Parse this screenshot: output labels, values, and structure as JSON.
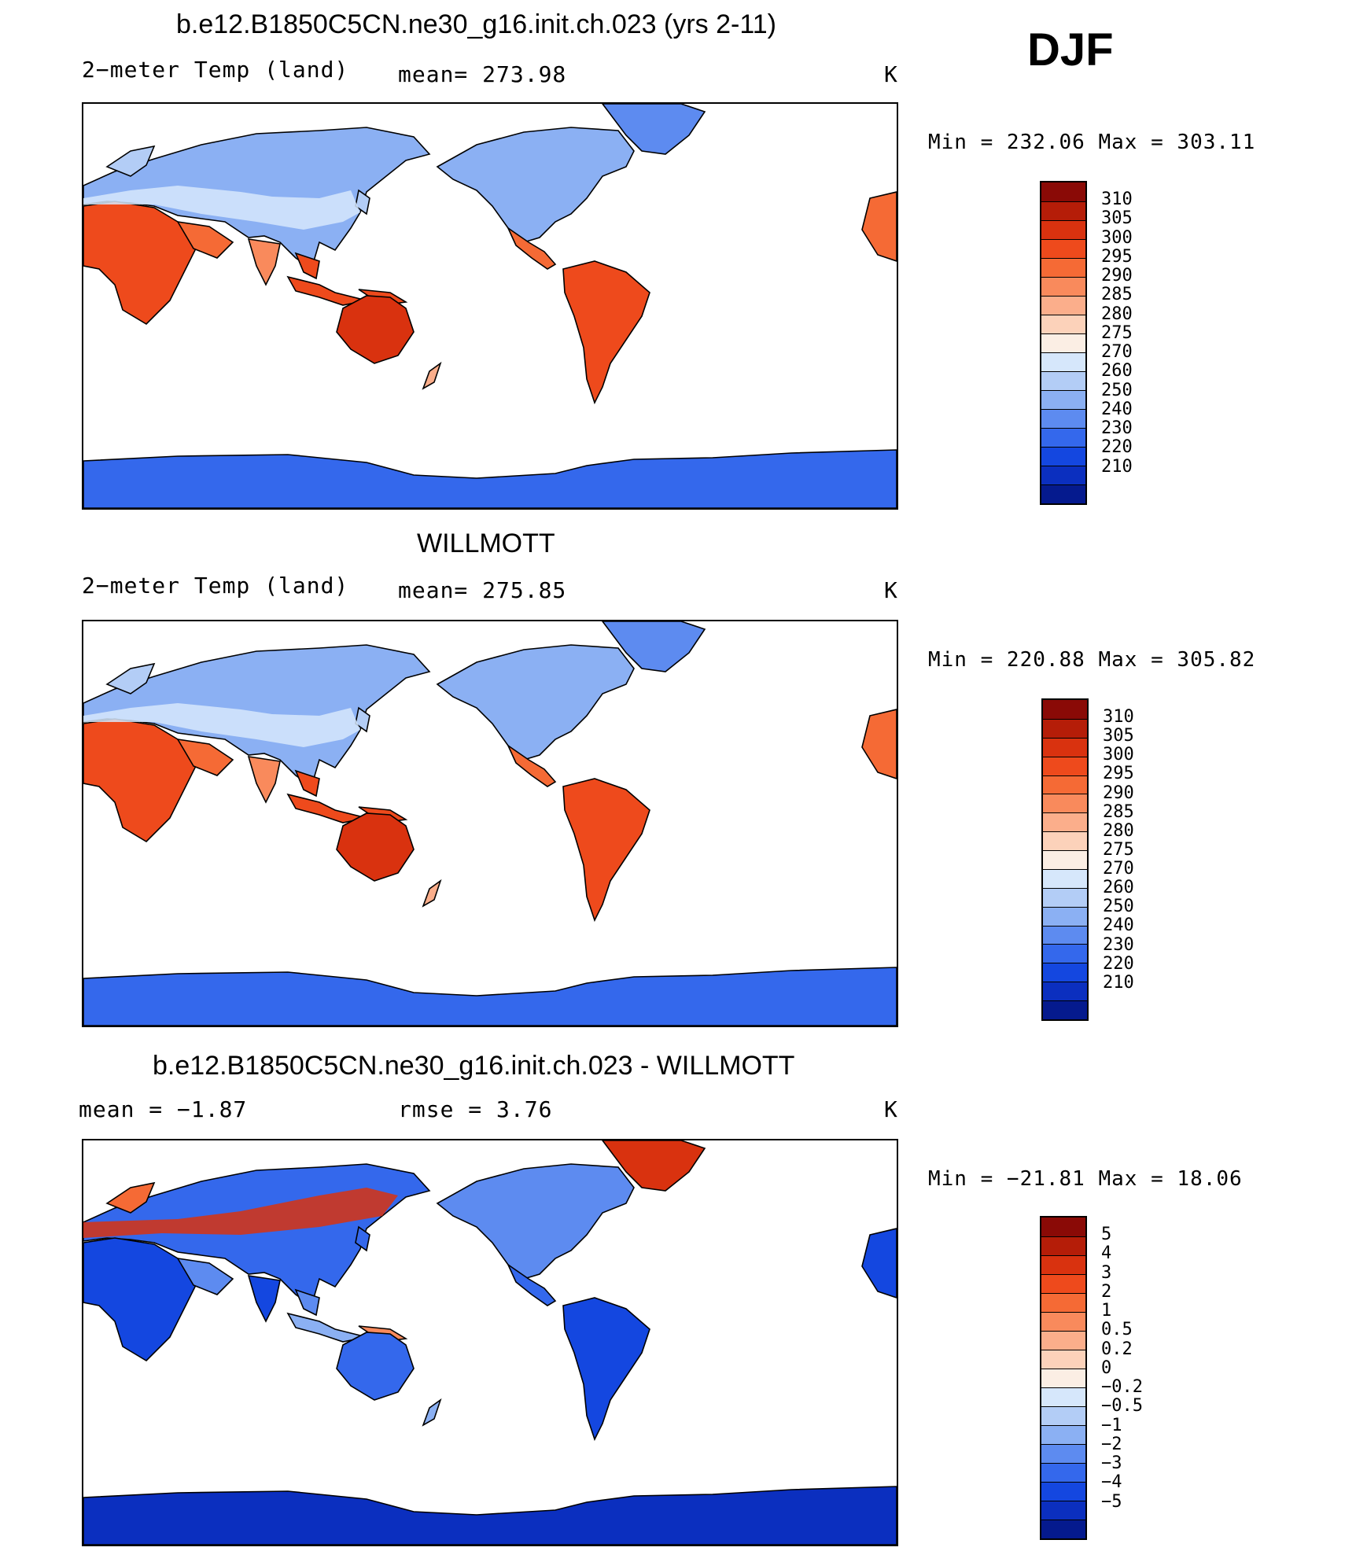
{
  "season": "DJF",
  "units": "K",
  "colors": {
    "ocean": "#ffffff",
    "coast": "#000000",
    "cold_deep": "#0a2bb8",
    "cold": "#3d6cf0",
    "cool": "#a9c6f5",
    "mild": "#fbd2b8",
    "warm": "#f56a35",
    "hot": "#d93a0c"
  },
  "panels": [
    {
      "title": "b.e12.B1850C5CN.ne30_g16.init.ch.023 (yrs 2-11)",
      "left_label": "2−meter Temp (land)",
      "center_label": "mean=  273.98",
      "units": "K",
      "min_max": "Min  =  232.06  Max  =  303.11",
      "kind": "field"
    },
    {
      "title": "WILLMOTT",
      "left_label": "2−meter Temp (land)",
      "center_label": "mean=  275.85",
      "units": "K",
      "min_max": "Min  =  220.88  Max  =  305.82",
      "kind": "field"
    },
    {
      "title": "b.e12.B1850C5CN.ne30_g16.init.ch.023 - WILLMOTT",
      "left_label": "mean  =    −1.87",
      "center_label": "rmse  =     3.76",
      "units": "K",
      "min_max": "Min  =  −21.81  Max  =    18.06",
      "kind": "diff"
    }
  ],
  "colorbars": {
    "field": {
      "labels": [
        "310",
        "305",
        "300",
        "295",
        "290",
        "285",
        "280",
        "275",
        "270",
        "260",
        "250",
        "240",
        "230",
        "220",
        "210"
      ],
      "colors": [
        "#8a0a06",
        "#b51d08",
        "#d9320f",
        "#ee4a1c",
        "#f56a35",
        "#f98a5c",
        "#fbae8b",
        "#fcd2ba",
        "#fbeee4",
        "#d6e7fb",
        "#b3cdf6",
        "#8bb0f3",
        "#5d8bf0",
        "#3468ec",
        "#1447e0",
        "#0b2fbf",
        "#051a8e"
      ]
    },
    "diff": {
      "labels": [
        "5",
        "4",
        "3",
        "2",
        "1",
        "0.5",
        "0.2",
        "0",
        "−0.2",
        "−0.5",
        "−1",
        "−2",
        "−3",
        "−4",
        "−5"
      ],
      "colors": [
        "#8a0a06",
        "#b51d08",
        "#d9320f",
        "#ee4a1c",
        "#f56a35",
        "#f98a5c",
        "#fbae8b",
        "#fcd2ba",
        "#fbeee4",
        "#d6e7fb",
        "#b3cdf6",
        "#8bb0f3",
        "#5d8bf0",
        "#3468ec",
        "#1447e0",
        "#0b2fbf",
        "#051a8e"
      ]
    }
  }
}
